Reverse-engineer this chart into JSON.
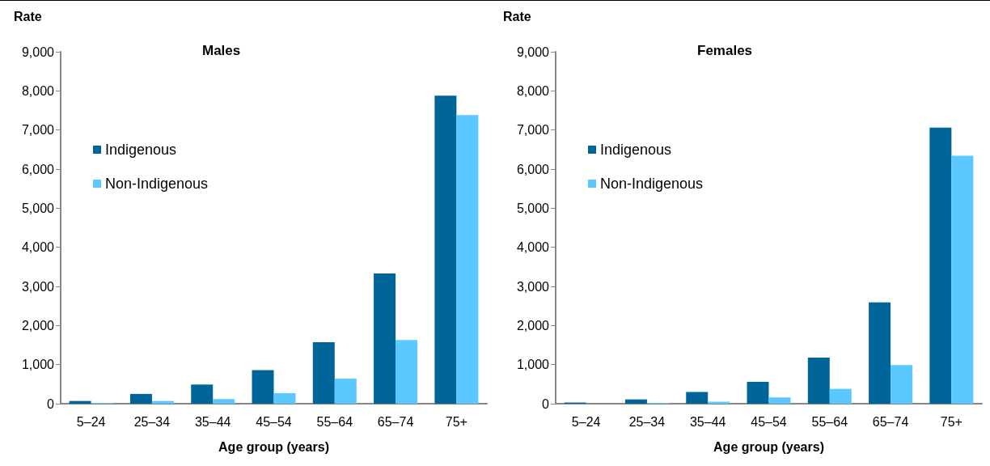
{
  "chart_data": [
    {
      "type": "bar",
      "title": "Males",
      "ylabel": "Rate",
      "xlabel": "Age group (years)",
      "categories": [
        "5–24",
        "25–34",
        "35–44",
        "45–54",
        "55–64",
        "65–74",
        "75+"
      ],
      "series": [
        {
          "name": "Indigenous",
          "color": "#006699",
          "values": [
            70,
            250,
            490,
            860,
            1570,
            3330,
            7880
          ]
        },
        {
          "name": "Non-Indigenous",
          "color": "#5bc8ff",
          "values": [
            20,
            70,
            120,
            270,
            640,
            1630,
            7380
          ]
        }
      ],
      "ylim": [
        0,
        9000
      ],
      "yticks": [
        {
          "value": 0,
          "label": "0"
        },
        {
          "value": 1000,
          "label": "1,000"
        },
        {
          "value": 2000,
          "label": "2,000"
        },
        {
          "value": 3000,
          "label": "3,000"
        },
        {
          "value": 4000,
          "label": "4,000"
        },
        {
          "value": 5000,
          "label": "5,000"
        },
        {
          "value": 6000,
          "label": "6,000"
        },
        {
          "value": 7000,
          "label": "7,000"
        },
        {
          "value": 8000,
          "label": "8,000"
        },
        {
          "value": 9000,
          "label": "9,000"
        }
      ],
      "grid": false,
      "legend": "left"
    },
    {
      "type": "bar",
      "title": "Females",
      "ylabel": "Rate",
      "xlabel": "Age group (years)",
      "categories": [
        "5–24",
        "25–34",
        "35–44",
        "45–54",
        "55–64",
        "65–74",
        "75+"
      ],
      "series": [
        {
          "name": "Indigenous",
          "color": "#006699",
          "values": [
            30,
            110,
            300,
            560,
            1180,
            2590,
            7060
          ]
        },
        {
          "name": "Non-Indigenous",
          "color": "#5bc8ff",
          "values": [
            null,
            20,
            50,
            160,
            380,
            990,
            6340
          ]
        }
      ],
      "ylim": [
        0,
        9000
      ],
      "yticks": [
        {
          "value": 0,
          "label": "0"
        },
        {
          "value": 1000,
          "label": "1,000"
        },
        {
          "value": 2000,
          "label": "2,000"
        },
        {
          "value": 3000,
          "label": "3,000"
        },
        {
          "value": 4000,
          "label": "4,000"
        },
        {
          "value": 5000,
          "label": "5,000"
        },
        {
          "value": 6000,
          "label": "6,000"
        },
        {
          "value": 7000,
          "label": "7,000"
        },
        {
          "value": 8000,
          "label": "8,000"
        },
        {
          "value": 9000,
          "label": "9,000"
        }
      ],
      "grid": false,
      "legend": "left"
    }
  ]
}
